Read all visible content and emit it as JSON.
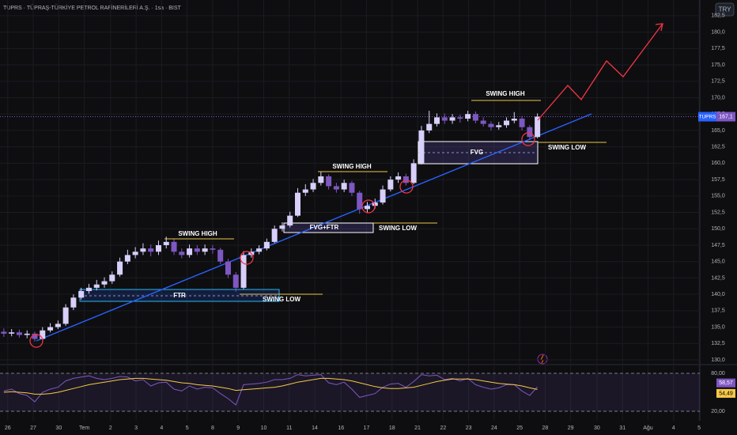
{
  "header": {
    "title": "TUPRS · TÜPRAŞ-TÜRKİYE PETROL RAFİNERİLERİ A.Ş. · 1sa · BIST",
    "currency": "TRY"
  },
  "chart_data": [
    {
      "type": "candlestick",
      "symbol": "TUPRS",
      "up_color": "#d8cffa",
      "down_color": "#7e57c2",
      "grid": true,
      "last_price": 167.1,
      "last_price_label": "167,1",
      "xlim": [
        -0.5,
        90
      ],
      "ylim": [
        129.4,
        184.9
      ],
      "xticks": [
        {
          "value": 0.5,
          "label": "26"
        },
        {
          "value": 3.8,
          "label": "27"
        },
        {
          "value": 7.1,
          "label": "30"
        },
        {
          "value": 10.4,
          "label": "Tem"
        },
        {
          "value": 13.8,
          "label": "2"
        },
        {
          "value": 17.1,
          "label": "3"
        },
        {
          "value": 20.4,
          "label": "4"
        },
        {
          "value": 23.7,
          "label": "5"
        },
        {
          "value": 27.0,
          "label": "8"
        },
        {
          "value": 30.3,
          "label": "9"
        },
        {
          "value": 33.6,
          "label": "10"
        },
        {
          "value": 36.9,
          "label": "11"
        },
        {
          "value": 40.2,
          "label": "14"
        },
        {
          "value": 43.6,
          "label": "16"
        },
        {
          "value": 46.9,
          "label": "17"
        },
        {
          "value": 50.2,
          "label": "18"
        },
        {
          "value": 53.5,
          "label": "21"
        },
        {
          "value": 56.8,
          "label": "22"
        },
        {
          "value": 60.1,
          "label": "23"
        },
        {
          "value": 63.4,
          "label": "24"
        },
        {
          "value": 66.7,
          "label": "25"
        },
        {
          "value": 70.0,
          "label": "28"
        },
        {
          "value": 73.3,
          "label": "29"
        },
        {
          "value": 76.7,
          "label": "30"
        },
        {
          "value": 80.0,
          "label": "31"
        },
        {
          "value": 83.3,
          "label": "Ağu"
        },
        {
          "value": 86.6,
          "label": "4"
        },
        {
          "value": 89.9,
          "label": "5"
        }
      ],
      "yticks": [
        {
          "value": 130,
          "label": "130,0"
        },
        {
          "value": 132.5,
          "label": "132,5"
        },
        {
          "value": 135,
          "label": "135,0"
        },
        {
          "value": 137.5,
          "label": "137,5"
        },
        {
          "value": 140,
          "label": "140,0"
        },
        {
          "value": 142.5,
          "label": "142,5"
        },
        {
          "value": 145,
          "label": "145,0"
        },
        {
          "value": 147.5,
          "label": "147,5"
        },
        {
          "value": 150,
          "label": "150,0"
        },
        {
          "value": 152.5,
          "label": "152,5"
        },
        {
          "value": 155,
          "label": "155,0"
        },
        {
          "value": 157.5,
          "label": "157,5"
        },
        {
          "value": 160,
          "label": "160,0"
        },
        {
          "value": 162.5,
          "label": "162,5"
        },
        {
          "value": 165,
          "label": "165,0"
        },
        {
          "value": 167.5,
          "label": "167,5"
        },
        {
          "value": 170,
          "label": "170,0"
        },
        {
          "value": 172.5,
          "label": "172,5"
        },
        {
          "value": 175,
          "label": "175,0"
        },
        {
          "value": 177.5,
          "label": "177,5"
        },
        {
          "value": 180,
          "label": "180,0"
        },
        {
          "value": 182.5,
          "label": "182,5"
        }
      ],
      "open": [
        134.3,
        134,
        134.2,
        133.8,
        134,
        133.2,
        134.5,
        135,
        135.5,
        138,
        139.5,
        140.5,
        141,
        141.5,
        142,
        143,
        145,
        146,
        146.5,
        147,
        146.5,
        147.5,
        148,
        146.5,
        146,
        147,
        146.5,
        147,
        146.8,
        145,
        143,
        141,
        146,
        146.5,
        147,
        148,
        150,
        150.5,
        152,
        155.5,
        156,
        157,
        158,
        156.5,
        156,
        157,
        155.5,
        153,
        153.5,
        154,
        156,
        157.5,
        158,
        157,
        160,
        165,
        166,
        167,
        166.5,
        167,
        166.8,
        167.5,
        166.5,
        166,
        165.5,
        165.8,
        166.5,
        166.8,
        165.5,
        164
      ],
      "high": [
        134.8,
        134.7,
        134.6,
        134.5,
        134.3,
        135,
        135.6,
        136,
        138.5,
        140,
        141,
        141.6,
        142.2,
        142.6,
        143.5,
        145.6,
        146.8,
        147.2,
        147.8,
        147.6,
        148.2,
        148.8,
        148.4,
        147,
        147.6,
        147.5,
        147.6,
        147.5,
        147.1,
        145.4,
        143.4,
        146.6,
        147,
        147.5,
        148.5,
        150.5,
        151,
        152.6,
        156.2,
        156.8,
        157.6,
        158.7,
        158.3,
        157,
        157.5,
        157.3,
        155.8,
        154.1,
        154.6,
        156.6,
        158,
        158.6,
        158.4,
        160.6,
        165.7,
        168,
        167.6,
        167.6,
        167.5,
        167.4,
        168,
        167.9,
        167,
        166.4,
        166.3,
        167,
        167.8,
        167.2,
        165.8,
        167.6
      ],
      "low": [
        133.5,
        133.6,
        133.4,
        133.3,
        132.8,
        133,
        134.2,
        134.7,
        135.2,
        137.6,
        139.2,
        140.1,
        140.6,
        141,
        141.6,
        142.7,
        144.6,
        145.5,
        146,
        145.8,
        146,
        147,
        146,
        145.5,
        145.6,
        146,
        146,
        146.2,
        144.6,
        142.5,
        140.4,
        140.8,
        145.6,
        146.1,
        146.7,
        147.8,
        149.6,
        150.2,
        151.8,
        155,
        155.6,
        156.6,
        156,
        155.5,
        155.6,
        155,
        152.3,
        152.5,
        153.1,
        153.7,
        155.7,
        157,
        156.6,
        156.8,
        159.8,
        164.6,
        165.6,
        166,
        166,
        166.2,
        166.4,
        166.1,
        165.6,
        165,
        165.1,
        165.4,
        166.1,
        165,
        163.6,
        163.8
      ],
      "close": [
        134,
        134.2,
        133.8,
        134,
        133.2,
        134.5,
        135,
        135.5,
        138,
        139.5,
        140.5,
        141,
        141.5,
        142,
        143,
        145,
        146,
        146.5,
        147,
        146.5,
        147.5,
        148,
        146.5,
        146,
        147,
        146.5,
        147,
        146.8,
        145,
        143,
        141,
        146,
        146.5,
        147,
        148,
        150,
        150.5,
        152,
        155.5,
        156,
        157,
        158,
        156.5,
        156,
        157,
        155.5,
        153,
        153.5,
        154,
        156,
        157.5,
        158,
        157,
        160,
        165,
        166,
        167,
        166.5,
        167,
        166.8,
        167.5,
        166.5,
        166,
        165.5,
        165.8,
        166.5,
        166.8,
        165.5,
        164,
        167.1
      ],
      "annotations": [
        "SWING HIGH",
        "SWING HIGH",
        "SWING HIGH",
        "SWING LOW",
        "SWING LOW",
        "SWING LOW",
        "FTR",
        "FVG+FTR",
        "FVG"
      ]
    },
    {
      "type": "line",
      "xlim": [
        -0.5,
        90
      ],
      "ylim": [
        7.5,
        92.5
      ],
      "yticks": [
        {
          "value": 80,
          "label": "80,00"
        },
        {
          "value": 20,
          "label": "20,00"
        }
      ],
      "series": [
        {
          "color": "#7e57c2",
          "last_label": "58,57",
          "values": [
            52,
            55,
            48,
            45,
            35,
            50,
            55,
            58,
            68,
            72,
            74,
            76,
            72,
            70,
            72,
            75,
            74,
            68,
            70,
            60,
            65,
            66,
            55,
            52,
            60,
            55,
            58,
            57,
            48,
            40,
            30,
            62,
            63,
            64,
            66,
            70,
            70,
            72,
            78,
            76,
            77,
            78,
            65,
            62,
            66,
            55,
            42,
            45,
            48,
            58,
            63,
            64,
            58,
            67,
            78,
            76,
            77,
            70,
            72,
            68,
            72,
            62,
            58,
            55,
            57,
            62,
            62,
            52,
            45,
            58.57
          ]
        },
        {
          "color": "#f7c948",
          "last_label": "54,49",
          "values": [
            50,
            51,
            50,
            49,
            47,
            47,
            48,
            50,
            53,
            56,
            59,
            62,
            64,
            66,
            68,
            70,
            71,
            72,
            72,
            71,
            70,
            69,
            67,
            65,
            64,
            62,
            61,
            60,
            58,
            56,
            53,
            54,
            55,
            56,
            57,
            58,
            60,
            63,
            66,
            68,
            70,
            72,
            72,
            71,
            70,
            68,
            65,
            62,
            59,
            57,
            56,
            56,
            57,
            58,
            61,
            64,
            67,
            69,
            71,
            71,
            71,
            70,
            68,
            66,
            64,
            63,
            62,
            60,
            57,
            54.49
          ]
        }
      ]
    }
  ]
}
